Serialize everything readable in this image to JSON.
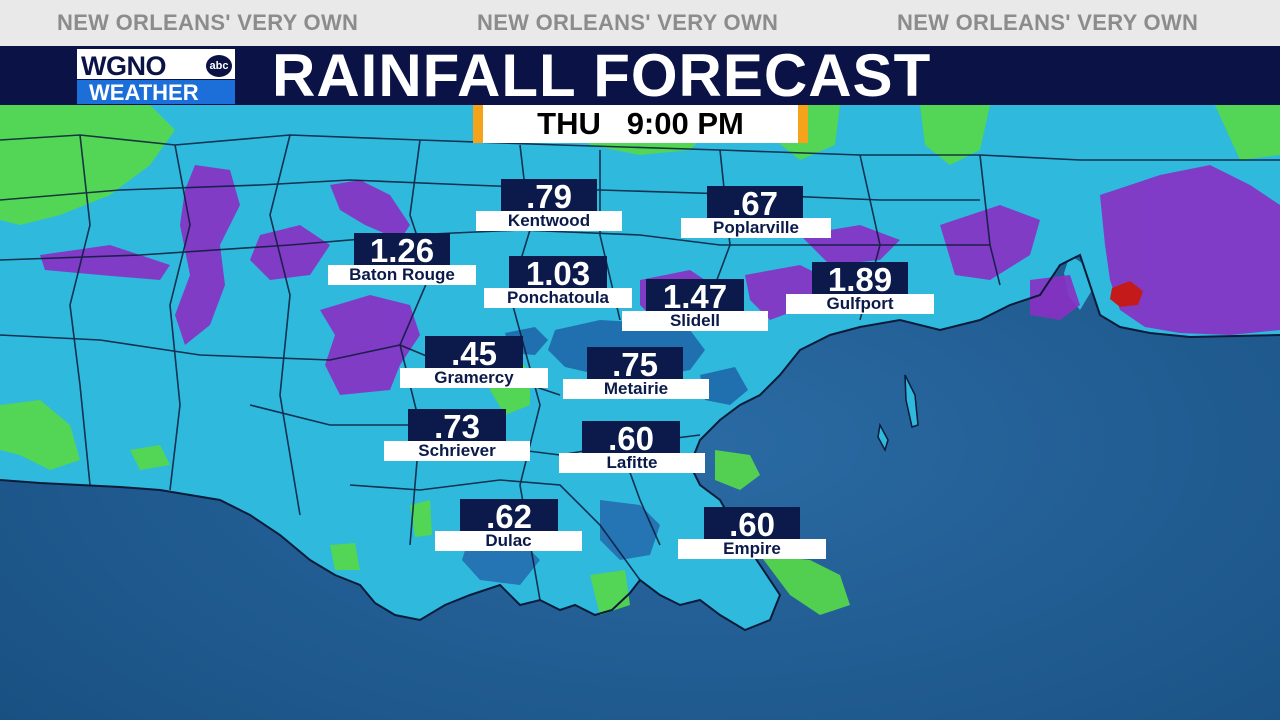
{
  "header": {
    "tagline": "NEW ORLEANS' VERY OWN",
    "title": "RAINFALL FORECAST",
    "logo": {
      "top": "WGNO",
      "badge": "abc",
      "bottom": "WEATHER"
    },
    "time": "THU   9:00 PM"
  },
  "colors": {
    "tagline_bg": "#e9e9e9",
    "title_bg": "#0a1246",
    "time_border": "#f5a31a",
    "value_bg": "#0b1a4a",
    "rain_light": "#2fc0e0",
    "rain_moderate": "#57d84a",
    "rain_heavy": "#8a2fc4",
    "rain_extreme": "#c41a1a",
    "gulf": "#1f5a8f"
  },
  "cities": [
    {
      "name": "Kentwood",
      "value": ".79"
    },
    {
      "name": "Poplarville",
      "value": ".67"
    },
    {
      "name": "Baton Rouge",
      "value": "1.26"
    },
    {
      "name": "Ponchatoula",
      "value": "1.03"
    },
    {
      "name": "Slidell",
      "value": "1.47"
    },
    {
      "name": "Gulfport",
      "value": "1.89"
    },
    {
      "name": "Gramercy",
      "value": ".45"
    },
    {
      "name": "Metairie",
      "value": ".75"
    },
    {
      "name": "Schriever",
      "value": ".73"
    },
    {
      "name": "Lafitte",
      "value": ".60"
    },
    {
      "name": "Dulac",
      "value": ".62"
    },
    {
      "name": "Empire",
      "value": ".60"
    }
  ]
}
